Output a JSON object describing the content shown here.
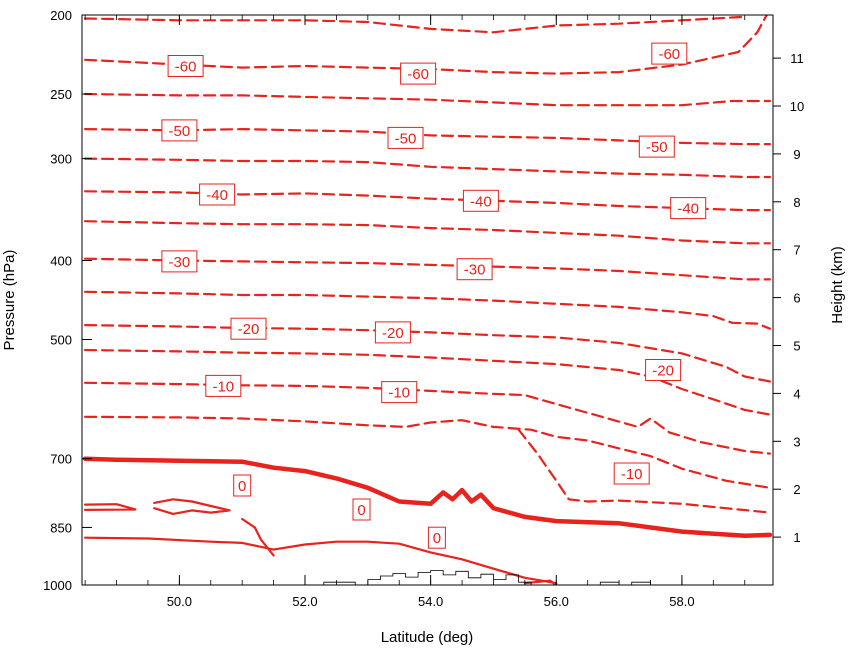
{
  "chart_data": {
    "type": "contour",
    "xlabel": "Latitude (deg)",
    "ylabel": "Pressure (hPa)",
    "y2label": "Height (km)",
    "xlim": [
      48.45,
      59.45
    ],
    "ylim": [
      1000,
      200
    ],
    "y2lim": [
      0,
      11.9
    ],
    "x_ticks": [
      50.0,
      52.0,
      54.0,
      56.0,
      58.0
    ],
    "x_tick_labels": [
      "50.0",
      "52.0",
      "54.0",
      "56.0",
      "58.0"
    ],
    "y_ticks": [
      1000,
      850,
      700,
      500,
      400,
      300,
      250,
      200
    ],
    "y_tick_labels": [
      "1000",
      "850",
      "700",
      "500",
      "400",
      "300",
      "250",
      "200"
    ],
    "y2_ticks": [
      1,
      2,
      3,
      4,
      5,
      6,
      7,
      8,
      9,
      10,
      11
    ],
    "y2_tick_labels": [
      "1",
      "2",
      "3",
      "4",
      "5",
      "6",
      "7",
      "8",
      "9",
      "10",
      "11"
    ],
    "contour_color": "#e8221c",
    "terrain_color": "#000000",
    "contours": [
      {
        "level": -65,
        "dashed": true,
        "points": [
          [
            48.5,
            202
          ],
          [
            50,
            203
          ],
          [
            51,
            203
          ],
          [
            52,
            203
          ],
          [
            53,
            204
          ],
          [
            54,
            208
          ],
          [
            55,
            210
          ],
          [
            56,
            206
          ],
          [
            57,
            205
          ],
          [
            58,
            203
          ],
          [
            59,
            201
          ]
        ]
      },
      {
        "level": -60,
        "dashed": true,
        "points": [
          [
            48.5,
            227
          ],
          [
            50,
            230
          ],
          [
            51,
            232
          ],
          [
            52,
            231
          ],
          [
            53,
            232
          ],
          [
            54,
            233
          ],
          [
            55,
            235
          ],
          [
            56,
            236
          ],
          [
            57,
            235
          ],
          [
            58,
            230
          ],
          [
            58.9,
            222
          ],
          [
            59.2,
            210
          ],
          [
            59.35,
            200
          ]
        ]
      },
      {
        "level": -55,
        "dashed": true,
        "points": [
          [
            48.5,
            250
          ],
          [
            50,
            251
          ],
          [
            51,
            251
          ],
          [
            52,
            252
          ],
          [
            53,
            253
          ],
          [
            54,
            254
          ],
          [
            55,
            256
          ],
          [
            56,
            258
          ],
          [
            57,
            258
          ],
          [
            58,
            258
          ],
          [
            58.8,
            255
          ],
          [
            59.4,
            255
          ]
        ]
      },
      {
        "level": -50,
        "dashed": true,
        "points": [
          [
            48.5,
            276
          ],
          [
            50,
            277
          ],
          [
            51,
            276
          ],
          [
            52,
            277
          ],
          [
            53,
            278
          ],
          [
            54,
            281
          ],
          [
            55,
            282
          ],
          [
            56,
            283
          ],
          [
            57,
            285
          ],
          [
            58,
            287
          ],
          [
            59,
            288
          ],
          [
            59.4,
            288
          ]
        ]
      },
      {
        "level": -45,
        "dashed": true,
        "points": [
          [
            48.5,
            300
          ],
          [
            50,
            301
          ],
          [
            51,
            302
          ],
          [
            52,
            302
          ],
          [
            53,
            303
          ],
          [
            54,
            307
          ],
          [
            55,
            309
          ],
          [
            56,
            311
          ],
          [
            57,
            313
          ],
          [
            58,
            314
          ],
          [
            59,
            316
          ],
          [
            59.4,
            316
          ]
        ]
      },
      {
        "level": -40,
        "dashed": true,
        "points": [
          [
            48.5,
            329
          ],
          [
            50,
            330
          ],
          [
            51,
            332
          ],
          [
            52,
            331
          ],
          [
            53,
            333
          ],
          [
            54,
            336
          ],
          [
            55,
            338
          ],
          [
            56,
            340
          ],
          [
            57,
            343
          ],
          [
            58,
            345
          ],
          [
            59,
            347
          ],
          [
            59.4,
            347
          ]
        ]
      },
      {
        "level": -35,
        "dashed": true,
        "points": [
          [
            48.5,
            358
          ],
          [
            50,
            360
          ],
          [
            51,
            361
          ],
          [
            52,
            361
          ],
          [
            53,
            362
          ],
          [
            54,
            365
          ],
          [
            55,
            367
          ],
          [
            56,
            370
          ],
          [
            57,
            373
          ],
          [
            58,
            378
          ],
          [
            59,
            381
          ],
          [
            59.4,
            381
          ]
        ]
      },
      {
        "level": -30,
        "dashed": true,
        "points": [
          [
            48.5,
            398
          ],
          [
            50,
            400
          ],
          [
            51,
            401
          ],
          [
            52,
            402
          ],
          [
            53,
            403
          ],
          [
            54,
            405
          ],
          [
            55,
            407
          ],
          [
            56,
            409
          ],
          [
            57,
            412
          ],
          [
            58,
            417
          ],
          [
            59,
            422
          ],
          [
            59.4,
            422
          ]
        ]
      },
      {
        "level": -25,
        "dashed": true,
        "points": [
          [
            48.5,
            437
          ],
          [
            50,
            439
          ],
          [
            51,
            441
          ],
          [
            52,
            441
          ],
          [
            53,
            443
          ],
          [
            54,
            445
          ],
          [
            55,
            448
          ],
          [
            56,
            452
          ],
          [
            57,
            456
          ],
          [
            58,
            463
          ],
          [
            58.5,
            468
          ],
          [
            58.8,
            477
          ],
          [
            59.2,
            478
          ],
          [
            59.4,
            485
          ]
        ]
      },
      {
        "level": -20,
        "dashed": true,
        "points": [
          [
            48.5,
            480
          ],
          [
            50,
            482
          ],
          [
            51,
            484
          ],
          [
            52,
            485
          ],
          [
            53,
            487
          ],
          [
            54,
            490
          ],
          [
            55,
            494
          ],
          [
            56,
            497
          ],
          [
            57,
            505
          ],
          [
            58,
            520
          ],
          [
            58.7,
            540
          ],
          [
            59,
            555
          ],
          [
            59.4,
            563
          ]
        ]
      },
      {
        "level": -15,
        "dashed": true,
        "points": [
          [
            48.5,
            515
          ],
          [
            50,
            517
          ],
          [
            51,
            519
          ],
          [
            52,
            520
          ],
          [
            53,
            522
          ],
          [
            54,
            526
          ],
          [
            55,
            531
          ],
          [
            56,
            536
          ],
          [
            57,
            545
          ],
          [
            57.5,
            555
          ],
          [
            58,
            575
          ],
          [
            58.5,
            592
          ],
          [
            59,
            610
          ],
          [
            59.4,
            618
          ]
        ]
      },
      {
        "level": -10,
        "dashed": true,
        "points": [
          [
            48.5,
            565
          ],
          [
            50,
            567
          ],
          [
            51,
            569
          ],
          [
            52,
            570
          ],
          [
            53,
            573
          ],
          [
            54,
            578
          ],
          [
            54.8,
            582
          ],
          [
            55.5,
            585
          ],
          [
            56,
            600
          ],
          [
            56.6,
            618
          ],
          [
            57.3,
            640
          ],
          [
            57.5,
            625
          ],
          [
            57.8,
            650
          ],
          [
            58.3,
            668
          ],
          [
            59,
            685
          ],
          [
            59.4,
            690
          ]
        ]
      },
      {
        "level": -5,
        "dashed": true,
        "points": [
          [
            48.5,
            622
          ],
          [
            50,
            623
          ],
          [
            51,
            625
          ],
          [
            52,
            630
          ],
          [
            53,
            637
          ],
          [
            53.6,
            640
          ],
          [
            54,
            632
          ],
          [
            54.5,
            628
          ],
          [
            55,
            640
          ],
          [
            55.6,
            645
          ],
          [
            56,
            658
          ],
          [
            56.5,
            665
          ],
          [
            57,
            680
          ],
          [
            57.5,
            695
          ],
          [
            58,
            720
          ],
          [
            58.7,
            745
          ],
          [
            59.4,
            760
          ]
        ]
      },
      {
        "level": -5,
        "dashed": true,
        "points": [
          [
            55.4,
            645
          ],
          [
            55.7,
            690
          ],
          [
            56,
            745
          ],
          [
            56.2,
            785
          ],
          [
            56.5,
            790
          ],
          [
            57,
            788
          ],
          [
            58,
            795
          ],
          [
            58.7,
            805
          ],
          [
            59.4,
            815
          ]
        ]
      },
      {
        "level": 0,
        "dashed": false,
        "bold": true,
        "points": [
          [
            48.5,
            700
          ],
          [
            49,
            702
          ],
          [
            50,
            704
          ],
          [
            51,
            706
          ],
          [
            51.5,
            718
          ],
          [
            52,
            725
          ],
          [
            52.5,
            740
          ],
          [
            53,
            760
          ],
          [
            53.5,
            790
          ],
          [
            54,
            795
          ],
          [
            54.2,
            770
          ],
          [
            54.35,
            785
          ],
          [
            54.5,
            765
          ],
          [
            54.65,
            790
          ],
          [
            54.8,
            775
          ],
          [
            55,
            805
          ],
          [
            55.5,
            825
          ],
          [
            56,
            835
          ],
          [
            57,
            840
          ],
          [
            58,
            860
          ],
          [
            59,
            870
          ],
          [
            59.4,
            868
          ]
        ]
      },
      {
        "level": 5,
        "dashed": false,
        "points": [
          [
            48.5,
            797
          ],
          [
            49,
            796
          ],
          [
            49.2,
            804
          ],
          [
            49.3,
            808
          ],
          [
            48.5,
            809
          ]
        ]
      },
      {
        "level": 5,
        "dashed": false,
        "points": [
          [
            49.6,
            793
          ],
          [
            49.9,
            785
          ],
          [
            50.2,
            790
          ],
          [
            50.5,
            800
          ],
          [
            50.8,
            810
          ],
          [
            50.5,
            815
          ],
          [
            50.2,
            810
          ],
          [
            49.9,
            818
          ],
          [
            49.6,
            805
          ]
        ]
      },
      {
        "level": 5,
        "dashed": false,
        "points": [
          [
            48.5,
            875
          ],
          [
            49.5,
            877
          ],
          [
            50.5,
            885
          ],
          [
            51,
            888
          ],
          [
            51.5,
            905
          ],
          [
            52,
            892
          ],
          [
            52.5,
            885
          ],
          [
            53,
            885
          ],
          [
            53.5,
            890
          ],
          [
            54,
            912
          ],
          [
            54.5,
            930
          ],
          [
            55,
            955
          ],
          [
            55.5,
            980
          ],
          [
            56,
            995
          ]
        ]
      },
      {
        "level": 5,
        "dashed": false,
        "points": [
          [
            51,
            830
          ],
          [
            51.2,
            850
          ],
          [
            51.3,
            880
          ],
          [
            51.5,
            920
          ]
        ]
      },
      {
        "level": 5,
        "dashed": false,
        "points": [
          [
            55.5,
            995
          ],
          [
            55.9,
            988
          ],
          [
            56,
            1000
          ]
        ]
      }
    ],
    "contour_labels": [
      {
        "text": "-60",
        "x": 50.1,
        "y": 231
      },
      {
        "text": "-60",
        "x": 53.8,
        "y": 236
      },
      {
        "text": "-60",
        "x": 57.8,
        "y": 223
      },
      {
        "text": "-50",
        "x": 50.0,
        "y": 277
      },
      {
        "text": "-50",
        "x": 53.6,
        "y": 283
      },
      {
        "text": "-50",
        "x": 57.6,
        "y": 290
      },
      {
        "text": "-40",
        "x": 50.6,
        "y": 332
      },
      {
        "text": "-40",
        "x": 54.8,
        "y": 338
      },
      {
        "text": "-40",
        "x": 58.1,
        "y": 345
      },
      {
        "text": "-30",
        "x": 50.0,
        "y": 401
      },
      {
        "text": "-30",
        "x": 54.7,
        "y": 410
      },
      {
        "text": "-20",
        "x": 51.1,
        "y": 485
      },
      {
        "text": "-20",
        "x": 53.4,
        "y": 490
      },
      {
        "text": "-20",
        "x": 57.7,
        "y": 545
      },
      {
        "text": "-10",
        "x": 50.7,
        "y": 570
      },
      {
        "text": "-10",
        "x": 53.5,
        "y": 580
      },
      {
        "text": "-10",
        "x": 57.2,
        "y": 730
      },
      {
        "text": "0",
        "x": 51.0,
        "y": 755
      },
      {
        "text": "0",
        "x": 52.9,
        "y": 808
      },
      {
        "text": "0",
        "x": 54.1,
        "y": 875
      }
    ],
    "terrain": [
      [
        52.3,
        1000
      ],
      [
        52.3,
        992
      ],
      [
        52.8,
        992
      ],
      [
        52.8,
        1000
      ],
      [
        53.0,
        1000
      ],
      [
        53.0,
        985
      ],
      [
        53.2,
        985
      ],
      [
        53.2,
        975
      ],
      [
        53.4,
        975
      ],
      [
        53.4,
        968
      ],
      [
        53.6,
        968
      ],
      [
        53.6,
        978
      ],
      [
        53.8,
        978
      ],
      [
        53.8,
        965
      ],
      [
        54.0,
        965
      ],
      [
        54.0,
        960
      ],
      [
        54.2,
        960
      ],
      [
        54.2,
        972
      ],
      [
        54.4,
        972
      ],
      [
        54.4,
        962
      ],
      [
        54.6,
        962
      ],
      [
        54.6,
        980
      ],
      [
        54.8,
        980
      ],
      [
        54.8,
        970
      ],
      [
        55.0,
        970
      ],
      [
        55.0,
        985
      ],
      [
        55.2,
        985
      ],
      [
        55.2,
        972
      ],
      [
        55.4,
        972
      ],
      [
        55.4,
        992
      ],
      [
        55.6,
        992
      ],
      [
        55.6,
        1000
      ]
    ],
    "terrain2": [
      [
        56.7,
        1000
      ],
      [
        56.7,
        992
      ],
      [
        57.0,
        992
      ],
      [
        57.0,
        1000
      ],
      [
        57.2,
        1000
      ],
      [
        57.2,
        992
      ],
      [
        57.5,
        992
      ],
      [
        57.5,
        1000
      ]
    ]
  }
}
